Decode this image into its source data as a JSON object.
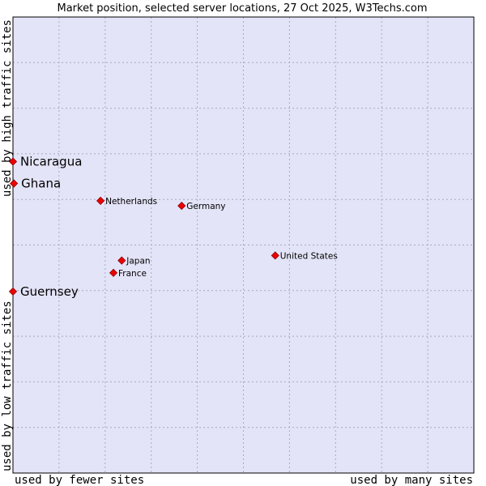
{
  "chart_data": {
    "type": "scatter",
    "title": "Market position, selected server locations, 27 Oct 2025, W3Techs.com",
    "xlabel_left": "used by fewer sites",
    "xlabel_right": "used by many sites",
    "ylabel_bottom": "used by low traffic sites",
    "ylabel_top": "used by high traffic sites",
    "xlim": [
      0,
      100
    ],
    "ylim": [
      0,
      100
    ],
    "grid": true,
    "points": [
      {
        "label": "Nicaragua",
        "x": 0.0,
        "y": 68.3,
        "emphasis": true
      },
      {
        "label": "Ghana",
        "x": 0.2,
        "y": 63.5,
        "emphasis": true
      },
      {
        "label": "Guernsey",
        "x": 0.0,
        "y": 39.8,
        "emphasis": true
      },
      {
        "label": "Netherlands",
        "x": 19.0,
        "y": 59.7,
        "emphasis": false
      },
      {
        "label": "Germany",
        "x": 36.6,
        "y": 58.6,
        "emphasis": false
      },
      {
        "label": "United States",
        "x": 56.9,
        "y": 47.7,
        "emphasis": false
      },
      {
        "label": "Japan",
        "x": 23.6,
        "y": 46.6,
        "emphasis": false
      },
      {
        "label": "France",
        "x": 21.8,
        "y": 43.9,
        "emphasis": false
      }
    ]
  },
  "colors": {
    "plot_background": "#e4e4f8",
    "grid": "#a8a8c0",
    "marker": "#ee0000",
    "marker_stroke": "#8a0000",
    "frame": "#000000"
  }
}
